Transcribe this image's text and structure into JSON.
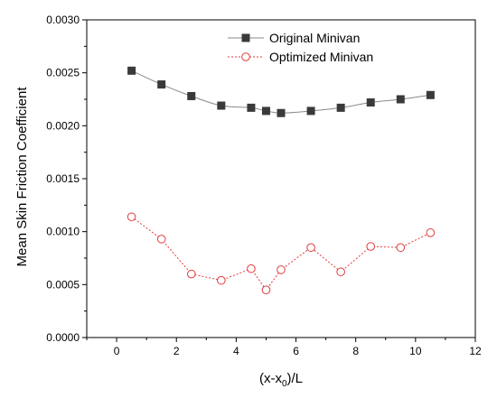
{
  "chart_data": {
    "type": "line",
    "xlabel": "(x-x",
    "xlabel_sub": "0",
    "xlabel_suffix": ")/L",
    "ylabel": "Mean Skin Friction Coefficient",
    "xlim": [
      -1,
      12
    ],
    "ylim": [
      0,
      0.003
    ],
    "x_ticks": [
      0,
      2,
      4,
      6,
      8,
      10,
      12
    ],
    "y_ticks": [
      "0.0000",
      "0.0005",
      "0.0010",
      "0.0015",
      "0.0020",
      "0.0025",
      "0.0030"
    ],
    "legend_position": "top-right",
    "grid": false,
    "series": [
      {
        "name": "Original Minivan",
        "color": "#3a3a3a",
        "marker": "filled-square",
        "line": "solid",
        "x": [
          0.5,
          1.5,
          2.5,
          3.5,
          4.5,
          5.0,
          5.5,
          6.5,
          7.5,
          8.5,
          9.5,
          10.5
        ],
        "y": [
          0.00252,
          0.00239,
          0.00228,
          0.00219,
          0.00217,
          0.00214,
          0.00212,
          0.00214,
          0.00217,
          0.00222,
          0.00225,
          0.00229
        ]
      },
      {
        "name": "Optimized Minivan",
        "color": "#e23a3a",
        "marker": "open-circle",
        "line": "dotted",
        "x": [
          0.5,
          1.5,
          2.5,
          3.5,
          4.5,
          5.0,
          5.5,
          6.5,
          7.5,
          8.5,
          9.5,
          10.5
        ],
        "y": [
          0.00114,
          0.00093,
          0.0006,
          0.00054,
          0.00065,
          0.00045,
          0.00064,
          0.00085,
          0.00062,
          0.00086,
          0.00085,
          0.00099
        ]
      }
    ]
  }
}
